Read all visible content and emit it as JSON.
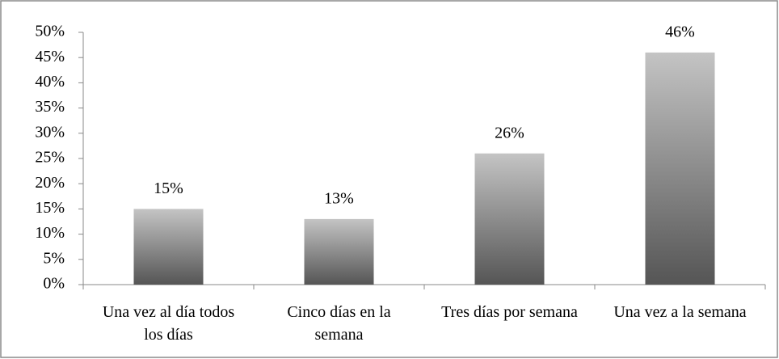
{
  "chart_data": {
    "type": "bar",
    "categories": [
      "Una vez al día todos los días",
      "Cinco días en la semana",
      "Tres días por semana",
      "Una vez a la semana"
    ],
    "values": [
      15,
      13,
      26,
      46
    ],
    "value_labels": [
      "15%",
      "13%",
      "26%",
      "46%"
    ],
    "color": "gradient-gray",
    "ylim": [
      0,
      50
    ],
    "yticks": [
      {
        "value": 0,
        "label": "0%"
      },
      {
        "value": 5,
        "label": "5%"
      },
      {
        "value": 10,
        "label": "10%"
      },
      {
        "value": 15,
        "label": "15%"
      },
      {
        "value": 20,
        "label": "20%"
      },
      {
        "value": 25,
        "label": "25%"
      },
      {
        "value": 30,
        "label": "30%"
      },
      {
        "value": 35,
        "label": "35%"
      },
      {
        "value": 40,
        "label": "40%"
      },
      {
        "value": 45,
        "label": "45%"
      },
      {
        "value": 50,
        "label": "50%"
      }
    ],
    "grid": false
  }
}
